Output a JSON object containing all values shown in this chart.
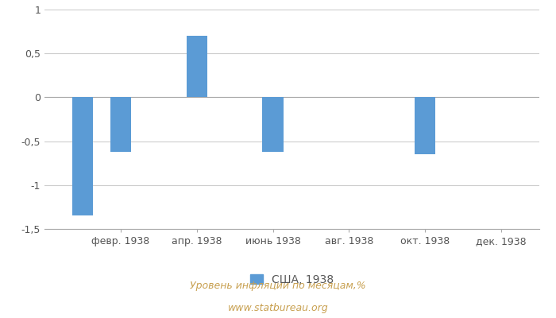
{
  "values": [
    -1.35,
    -0.62,
    0.0,
    0.7,
    0.0,
    -0.62,
    0.0,
    0.0,
    0.0,
    -0.65,
    0.0,
    0.0
  ],
  "x_tick_labels": [
    "февр. 1938",
    "апр. 1938",
    "июнь 1938",
    "авг. 1938",
    "окт. 1938",
    "дек. 1938"
  ],
  "x_tick_positions": [
    2,
    4,
    6,
    8,
    10,
    12
  ],
  "bar_color": "#5b9bd5",
  "ylim": [
    -1.5,
    1.0
  ],
  "ytick_labels": [
    "-1,5",
    "-1",
    "-0,5",
    "0",
    "0,5",
    "1"
  ],
  "ytick_values": [
    -1.5,
    -1.0,
    -0.5,
    0.0,
    0.5,
    1.0
  ],
  "legend_label": "США, 1938",
  "footer_line1": "Уровень инфляции по месяцам,%",
  "footer_line2": "www.statbureau.org",
  "background_color": "#ffffff",
  "grid_color": "#cccccc",
  "bar_width": 0.55,
  "tick_fontsize": 9,
  "legend_fontsize": 10,
  "footer_fontsize": 9,
  "footer_color": "#c8a050",
  "tick_color": "#555555",
  "xlim": [
    0.0,
    13.0
  ]
}
